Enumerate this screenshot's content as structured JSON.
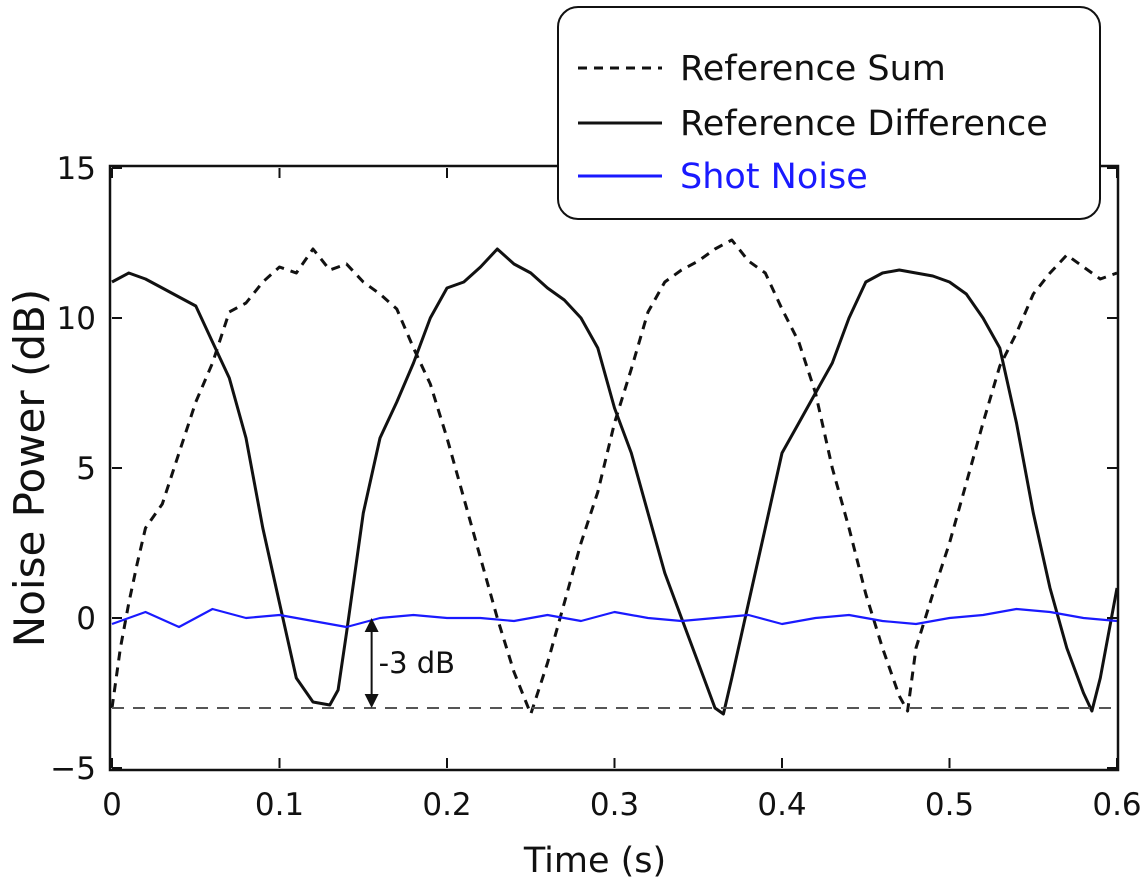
{
  "chart_data": {
    "type": "line",
    "title": "",
    "xlabel": "Time (s)",
    "ylabel": "Noise Power (dB)",
    "xlim": [
      0,
      0.6
    ],
    "ylim": [
      -5,
      15
    ],
    "xticks": [
      0,
      0.1,
      0.2,
      0.3,
      0.4,
      0.5,
      0.6
    ],
    "xtick_labels": [
      "0",
      "0.1",
      "0.2",
      "0.3",
      "0.4",
      "0.5",
      "0.6"
    ],
    "yticks": [
      -5,
      0,
      5,
      10,
      15
    ],
    "ytick_labels": [
      "−5",
      "0",
      "5",
      "10",
      "15"
    ],
    "grid": false,
    "legend_position": "top-right",
    "series": [
      {
        "name": "Reference Sum",
        "style": "dotted",
        "color": "#111111",
        "x": [
          0.0,
          0.005,
          0.01,
          0.015,
          0.02,
          0.03,
          0.04,
          0.05,
          0.06,
          0.07,
          0.08,
          0.09,
          0.1,
          0.11,
          0.12,
          0.13,
          0.14,
          0.15,
          0.16,
          0.17,
          0.18,
          0.19,
          0.2,
          0.21,
          0.22,
          0.23,
          0.24,
          0.25,
          0.26,
          0.27,
          0.28,
          0.29,
          0.3,
          0.31,
          0.32,
          0.33,
          0.34,
          0.35,
          0.36,
          0.37,
          0.38,
          0.39,
          0.4,
          0.41,
          0.42,
          0.43,
          0.44,
          0.45,
          0.46,
          0.47,
          0.475,
          0.48,
          0.49,
          0.5,
          0.51,
          0.52,
          0.53,
          0.54,
          0.55,
          0.56,
          0.57,
          0.58,
          0.59,
          0.6
        ],
        "y": [
          -3.0,
          -1.0,
          0.5,
          1.8,
          3.0,
          3.8,
          5.5,
          7.2,
          8.5,
          10.2,
          10.5,
          11.2,
          11.7,
          11.5,
          12.3,
          11.6,
          11.8,
          11.2,
          10.8,
          10.3,
          9.0,
          7.8,
          6.0,
          4.0,
          2.0,
          0.0,
          -1.8,
          -3.2,
          -1.5,
          0.5,
          2.5,
          4.2,
          6.5,
          8.3,
          10.2,
          11.2,
          11.6,
          11.9,
          12.3,
          12.6,
          11.9,
          11.5,
          10.3,
          9.2,
          7.5,
          5.0,
          3.0,
          0.8,
          -1.0,
          -2.6,
          -3.1,
          -1.0,
          0.8,
          2.5,
          4.5,
          6.5,
          8.4,
          9.5,
          10.8,
          11.5,
          12.1,
          11.7,
          11.3,
          11.5
        ]
      },
      {
        "name": "Reference Difference",
        "style": "solid",
        "color": "#111111",
        "x": [
          0.0,
          0.01,
          0.02,
          0.03,
          0.04,
          0.05,
          0.06,
          0.07,
          0.08,
          0.09,
          0.1,
          0.11,
          0.12,
          0.13,
          0.135,
          0.14,
          0.145,
          0.15,
          0.16,
          0.17,
          0.18,
          0.19,
          0.2,
          0.21,
          0.22,
          0.23,
          0.24,
          0.25,
          0.26,
          0.27,
          0.28,
          0.29,
          0.3,
          0.31,
          0.32,
          0.33,
          0.34,
          0.35,
          0.36,
          0.365,
          0.37,
          0.38,
          0.39,
          0.4,
          0.41,
          0.42,
          0.43,
          0.44,
          0.45,
          0.46,
          0.47,
          0.48,
          0.49,
          0.5,
          0.51,
          0.52,
          0.53,
          0.54,
          0.55,
          0.56,
          0.57,
          0.58,
          0.585,
          0.59,
          0.6
        ],
        "y": [
          11.2,
          11.5,
          11.3,
          11.0,
          10.7,
          10.4,
          9.2,
          8.0,
          6.0,
          3.0,
          0.5,
          -2.0,
          -2.8,
          -2.9,
          -2.4,
          -0.5,
          1.5,
          3.5,
          6.0,
          7.2,
          8.5,
          10.0,
          11.0,
          11.2,
          11.7,
          12.3,
          11.8,
          11.5,
          11.0,
          10.6,
          10.0,
          9.0,
          7.0,
          5.5,
          3.5,
          1.5,
          0.0,
          -1.5,
          -3.0,
          -3.2,
          -2.0,
          0.5,
          3.0,
          5.5,
          6.5,
          7.5,
          8.5,
          10.0,
          11.2,
          11.5,
          11.6,
          11.5,
          11.4,
          11.2,
          10.8,
          10.0,
          9.0,
          6.5,
          3.5,
          1.0,
          -1.0,
          -2.5,
          -3.1,
          -2.0,
          1.0
        ]
      },
      {
        "name": "Shot Noise",
        "style": "solid",
        "color": "#1a1aff",
        "x": [
          0.0,
          0.02,
          0.04,
          0.06,
          0.08,
          0.1,
          0.12,
          0.14,
          0.16,
          0.18,
          0.2,
          0.22,
          0.24,
          0.26,
          0.28,
          0.3,
          0.32,
          0.34,
          0.36,
          0.38,
          0.4,
          0.42,
          0.44,
          0.46,
          0.48,
          0.5,
          0.52,
          0.54,
          0.56,
          0.58,
          0.6
        ],
        "y": [
          -0.2,
          0.2,
          -0.3,
          0.3,
          0.0,
          0.1,
          -0.1,
          -0.3,
          0.0,
          0.1,
          0.0,
          0.0,
          -0.1,
          0.1,
          -0.1,
          0.2,
          0.0,
          -0.1,
          0.0,
          0.1,
          -0.2,
          0.0,
          0.1,
          -0.1,
          -0.2,
          0.0,
          0.1,
          0.3,
          0.2,
          0.0,
          -0.1
        ]
      }
    ],
    "reference_line": {
      "y": -3,
      "style": "dashed",
      "color": "#555555"
    },
    "annotation": {
      "text": "-3 dB",
      "x": 0.155,
      "y_from": 0,
      "y_to": -3
    }
  }
}
